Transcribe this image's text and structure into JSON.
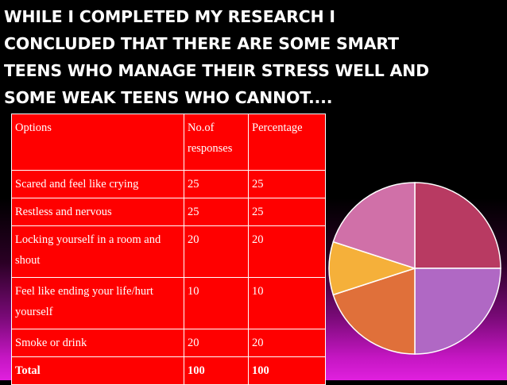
{
  "slide": {
    "title_lines": [
      "WHILE I COMPLETED MY RESEARCH I",
      "CONCLUDED THAT THERE ARE SOME SMART",
      "TEENS WHO MANAGE THEIR STRESS WELL AND",
      "SOME WEAK TEENS WHO CANNOT...."
    ]
  },
  "table": {
    "headers": [
      "Options",
      "No.of responses",
      "Percentage"
    ],
    "rows": [
      {
        "option": "Scared and feel like crying",
        "responses": "25",
        "percentage": "25"
      },
      {
        "option": "Restless and nervous",
        "responses": "25",
        "percentage": "25"
      },
      {
        "option": "Locking yourself in a room and shout",
        "responses": "20",
        "percentage": "20"
      },
      {
        "option": "Feel like ending your life/hurt yourself",
        "responses": "10",
        "percentage": "10"
      },
      {
        "option": "Smoke or drink",
        "responses": "20",
        "percentage": "20"
      }
    ],
    "total": {
      "label": "Total",
      "responses": "100",
      "percentage": "100"
    }
  },
  "chart_data": {
    "type": "pie",
    "categories": [
      "Scared and feel like crying",
      "Restless and nervous",
      "Locking yourself in a room and shout",
      "Feel like ending your life/hurt yourself",
      "Smoke or drink"
    ],
    "values": [
      25,
      25,
      20,
      10,
      20
    ],
    "colors": [
      "#b83a62",
      "#b068c4",
      "#e0703a",
      "#f5b03a",
      "#d070a8"
    ],
    "start": "top",
    "direction": "clockwise"
  }
}
